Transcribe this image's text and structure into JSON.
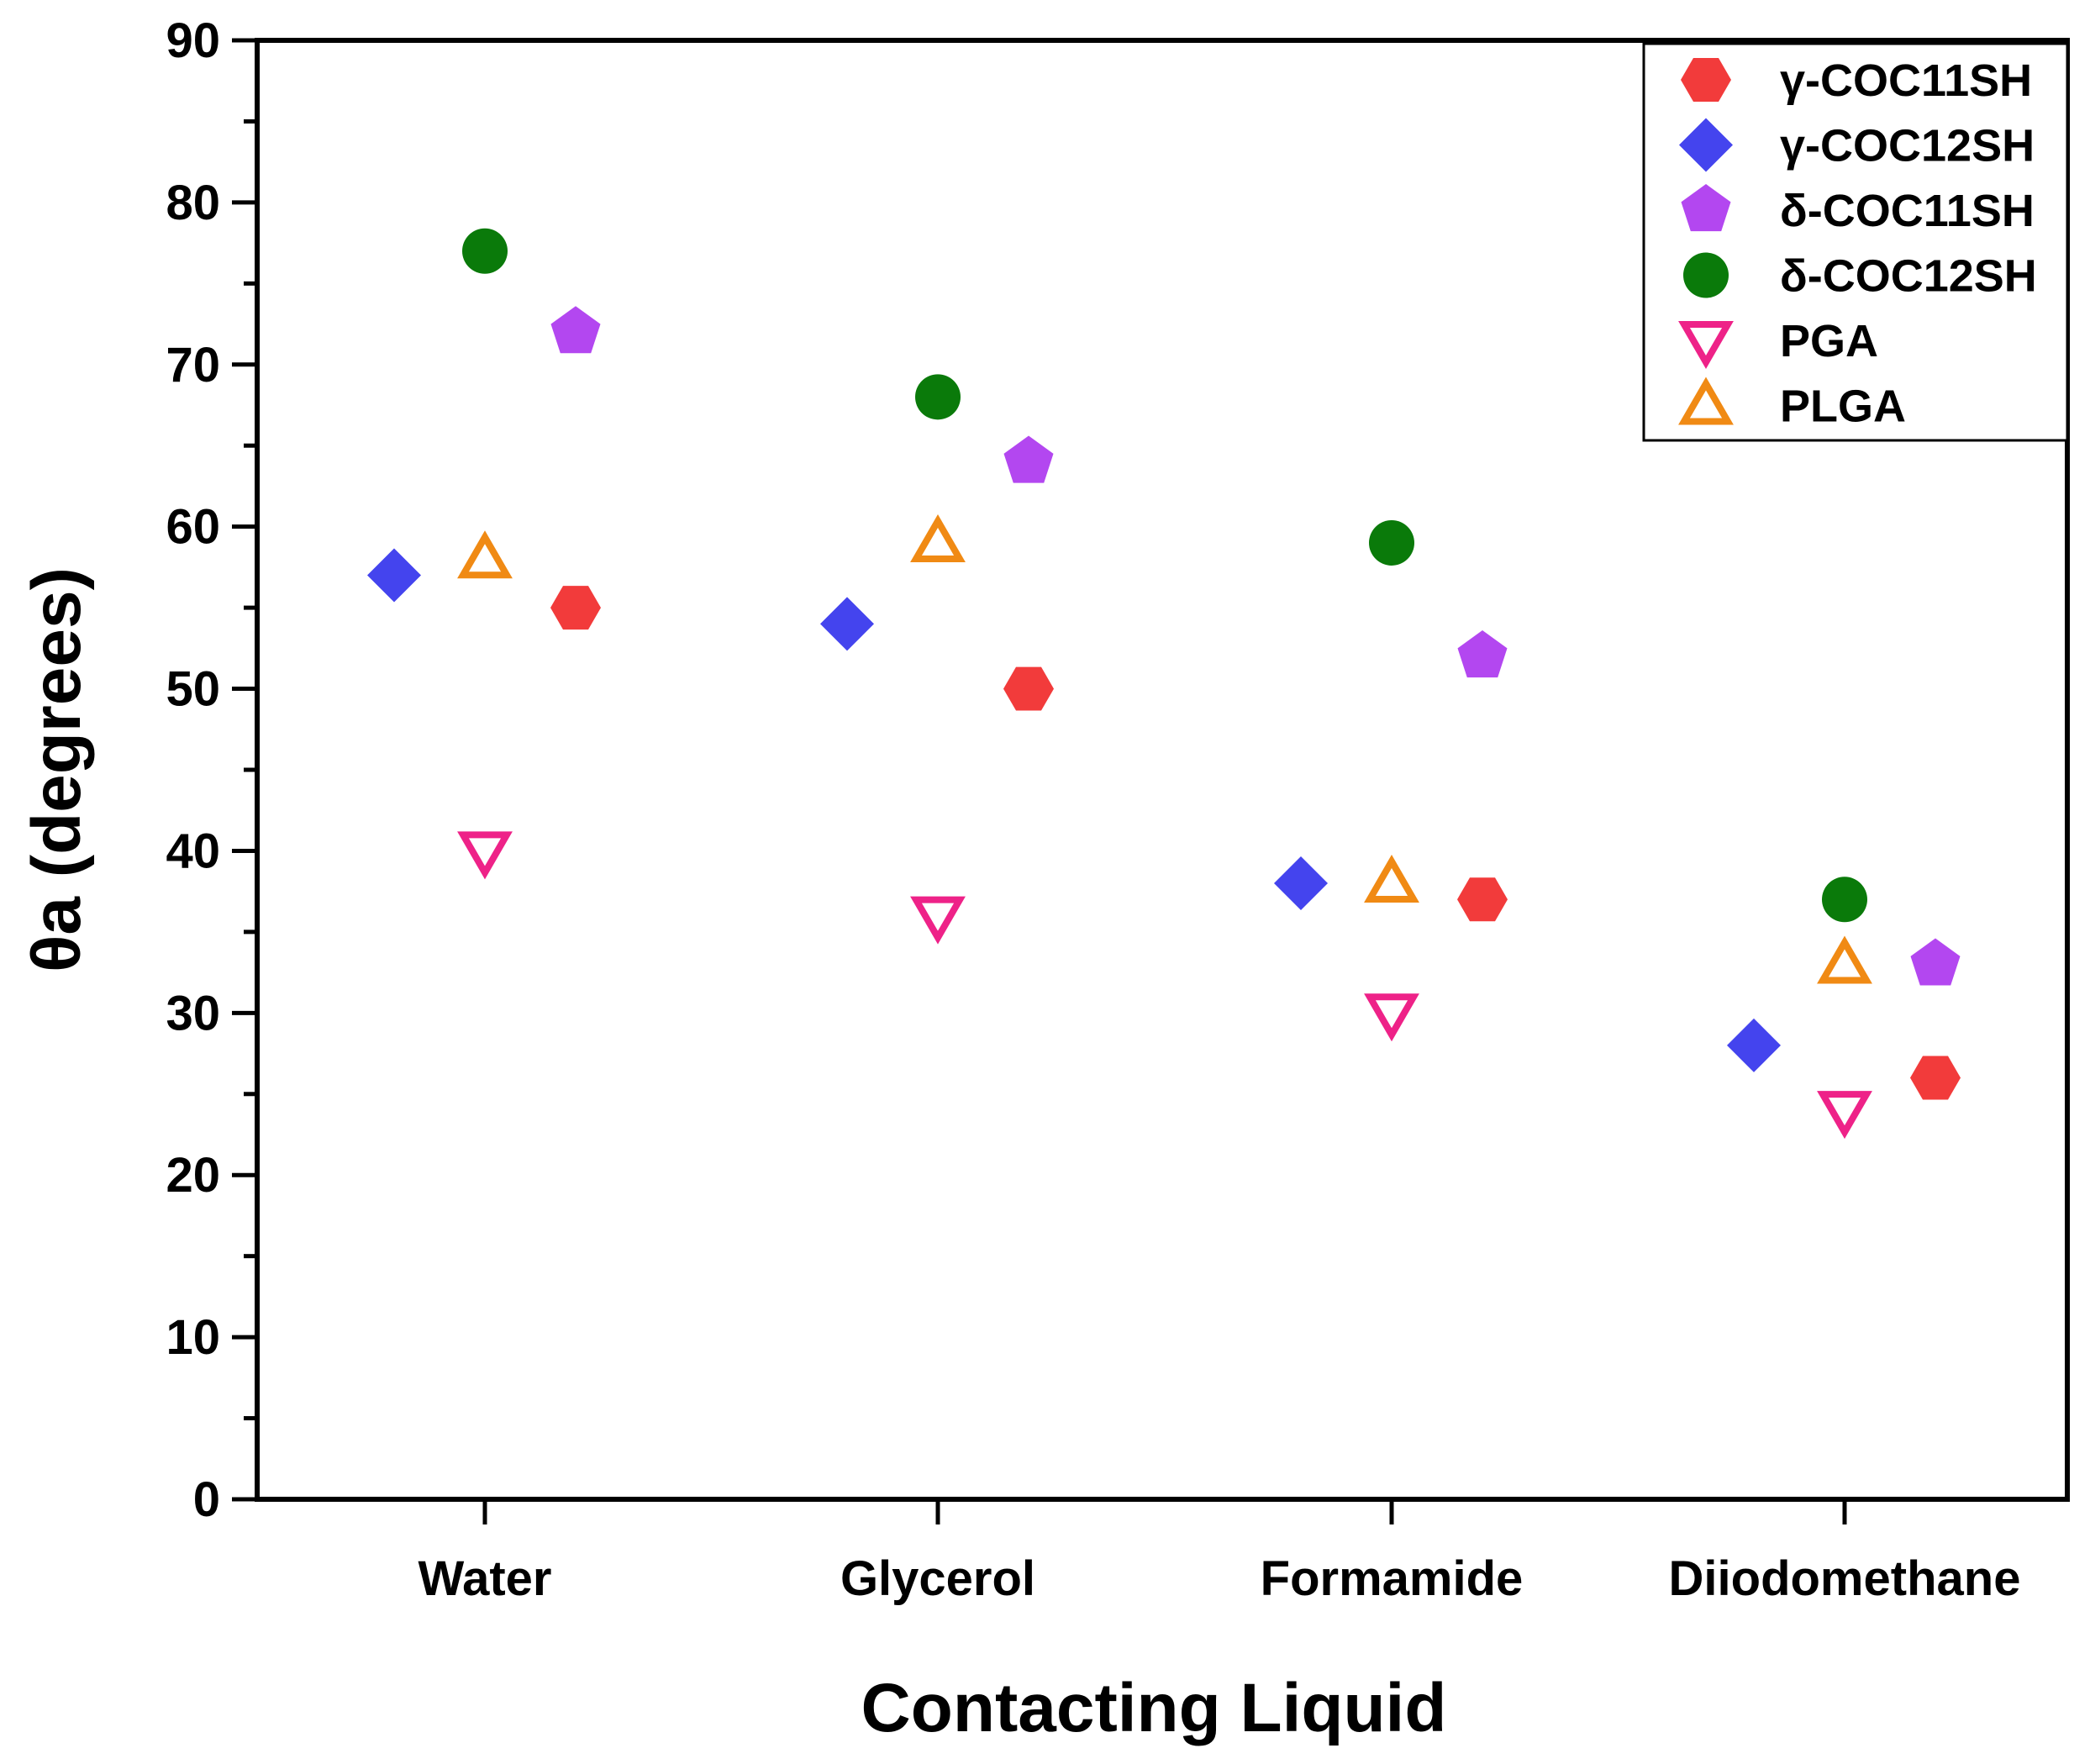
{
  "chart_data": {
    "type": "scatter",
    "xlabel": "Contacting Liquid",
    "ylabel": "θa (degrees)",
    "ylim": [
      0,
      90
    ],
    "yticks": [
      0,
      10,
      20,
      30,
      40,
      50,
      60,
      70,
      80,
      90
    ],
    "categories": [
      "Water",
      "Glycerol",
      "Formamide",
      "Diiodomethane"
    ],
    "legend_position": "top-right",
    "grid": false,
    "series": [
      {
        "name": "γ-COC11SH",
        "marker": "hexagon",
        "filled": true,
        "color": "#f23b3b",
        "offset": 1,
        "values": [
          55,
          50,
          37,
          26
        ]
      },
      {
        "name": "γ-COC12SH",
        "marker": "diamond",
        "filled": true,
        "color": "#4444ee",
        "offset": -1,
        "values": [
          57,
          54,
          38,
          28
        ]
      },
      {
        "name": "δ-COC11SH",
        "marker": "pentagon",
        "filled": true,
        "color": "#b347f0",
        "offset": 1,
        "values": [
          72,
          64,
          52,
          33
        ]
      },
      {
        "name": "δ-COC12SH",
        "marker": "circle",
        "filled": true,
        "color": "#0a7a0a",
        "offset": 0,
        "values": [
          77,
          68,
          59,
          37
        ]
      },
      {
        "name": "PGA",
        "marker": "triangle-down",
        "filled": false,
        "color": "#ee2288",
        "offset": 0,
        "values": [
          40,
          36,
          30,
          24
        ]
      },
      {
        "name": "PLGA",
        "marker": "triangle-up",
        "filled": false,
        "color": "#f08a14",
        "offset": 0,
        "values": [
          58,
          59,
          38,
          33
        ]
      }
    ]
  }
}
